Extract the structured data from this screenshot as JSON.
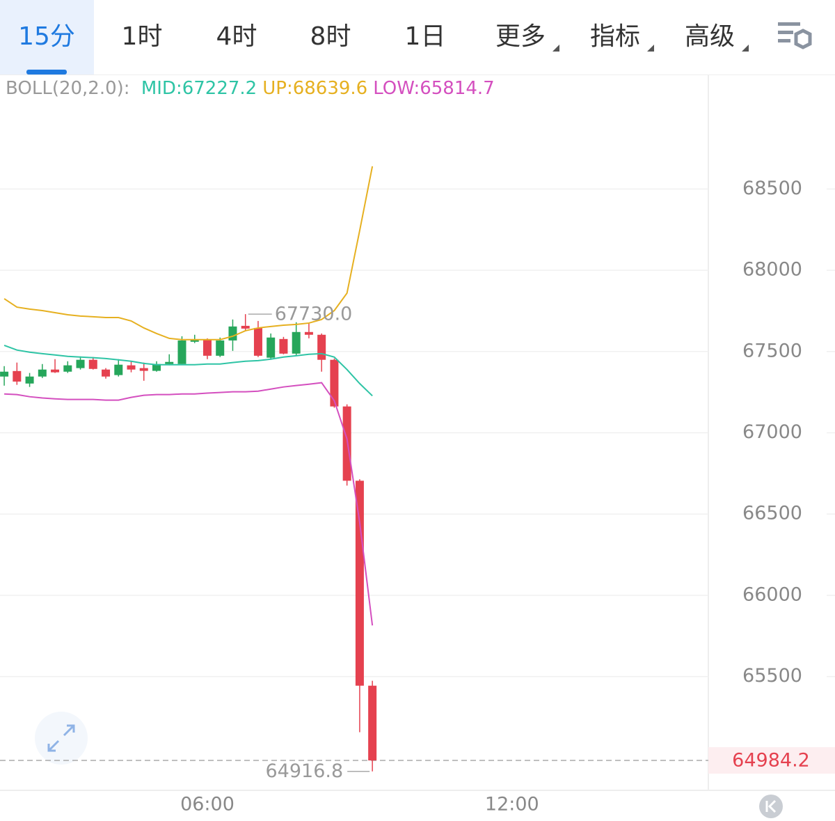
{
  "tabs": [
    "15分",
    "1时",
    "4时",
    "8时",
    "1日",
    "更多",
    "指标",
    "高级"
  ],
  "chart_data": {
    "type": "candlestick",
    "indicator_label": "BOLL(20,2.0):",
    "x": [
      120,
      135,
      150,
      165,
      180,
      195,
      210,
      225,
      240,
      255,
      270,
      285,
      300,
      315,
      330,
      345,
      360,
      375,
      390,
      405,
      420,
      435,
      450,
      465,
      480,
      495,
      510,
      525,
      540,
      555
    ],
    "open": [
      67346,
      67380,
      67303,
      67346,
      67389,
      67376,
      67398,
      67449,
      67389,
      67355,
      67415,
      67398,
      67381,
      67423,
      67423,
      67560,
      67573,
      67474,
      67568,
      67658,
      67645,
      67462,
      67577,
      67487,
      67620,
      67603,
      67449,
      67162,
      66705,
      65444
    ],
    "high": [
      67410,
      67432,
      67368,
      67423,
      67453,
      67440,
      67470,
      67466,
      67398,
      67453,
      67440,
      67432,
      67440,
      67483,
      67594,
      67603,
      67581,
      67586,
      67697,
      67730.0,
      67688,
      67611,
      67590,
      67680,
      67675,
      67611,
      67457,
      67175,
      66714,
      65474
    ],
    "low": [
      67290,
      67295,
      67282,
      67337,
      67368,
      67368,
      67389,
      67389,
      67333,
      67346,
      67372,
      67320,
      67376,
      67415,
      67423,
      67552,
      67453,
      67466,
      67504,
      67624,
      67466,
      67449,
      67483,
      67474,
      67581,
      67376,
      67154,
      66675,
      65158,
      64916.8
    ],
    "close": [
      67376,
      67315,
      67346,
      67389,
      67372,
      67415,
      67449,
      67393,
      67346,
      67419,
      67389,
      67381,
      67423,
      67436,
      67568,
      67573,
      67474,
      67568,
      67654,
      67641,
      67474,
      67586,
      67487,
      67620,
      67603,
      67449,
      67162,
      66705,
      65444,
      64984.2
    ],
    "up_color": "#26a65b",
    "down_color": "#e5414f",
    "series": [
      {
        "name": "MID:67227.2",
        "color": "#2ec4a5",
        "values": [
          67538,
          67509,
          67496,
          67487,
          67479,
          67470,
          67466,
          67462,
          67457,
          67449,
          67440,
          67427,
          67419,
          67419,
          67419,
          67419,
          67423,
          67423,
          67432,
          67440,
          67444,
          67453,
          67466,
          67474,
          67483,
          67487,
          67466,
          67389,
          67303,
          67227.2
        ]
      },
      {
        "name": "UP:68639.6",
        "color": "#e6b020",
        "values": [
          67825,
          67773,
          67761,
          67752,
          67739,
          67726,
          67718,
          67714,
          67709,
          67709,
          67688,
          67645,
          67611,
          67581,
          67573,
          67573,
          67573,
          67573,
          67594,
          67628,
          67645,
          67654,
          67662,
          67667,
          67675,
          67697,
          67752,
          67859,
          68244,
          68639.6
        ]
      },
      {
        "name": "LOW:65814.7",
        "color": "#d44fbf",
        "values": [
          67239,
          67235,
          67222,
          67214,
          67209,
          67205,
          67205,
          67205,
          67201,
          67201,
          67218,
          67231,
          67235,
          67235,
          67239,
          67239,
          67244,
          67248,
          67252,
          67252,
          67256,
          67269,
          67282,
          67291,
          67299,
          67308,
          67197,
          66962,
          66449,
          65814.7
        ]
      }
    ],
    "xlim": [
      115,
      952
    ],
    "xticks": [
      {
        "value": 360,
        "label": "06:00"
      },
      {
        "value": 720,
        "label": "12:00"
      }
    ],
    "ylim": [
      64800,
      69200
    ],
    "yticks": [
      65500,
      66000,
      66500,
      67000,
      67500,
      68000,
      68500
    ],
    "grid": true,
    "high_marker": {
      "value": 67730.0,
      "label": "67730.0"
    },
    "low_marker": {
      "value": 64916.8,
      "label": "64916.8"
    },
    "last_price": {
      "value": 64984.2,
      "label": "64984.2"
    }
  }
}
